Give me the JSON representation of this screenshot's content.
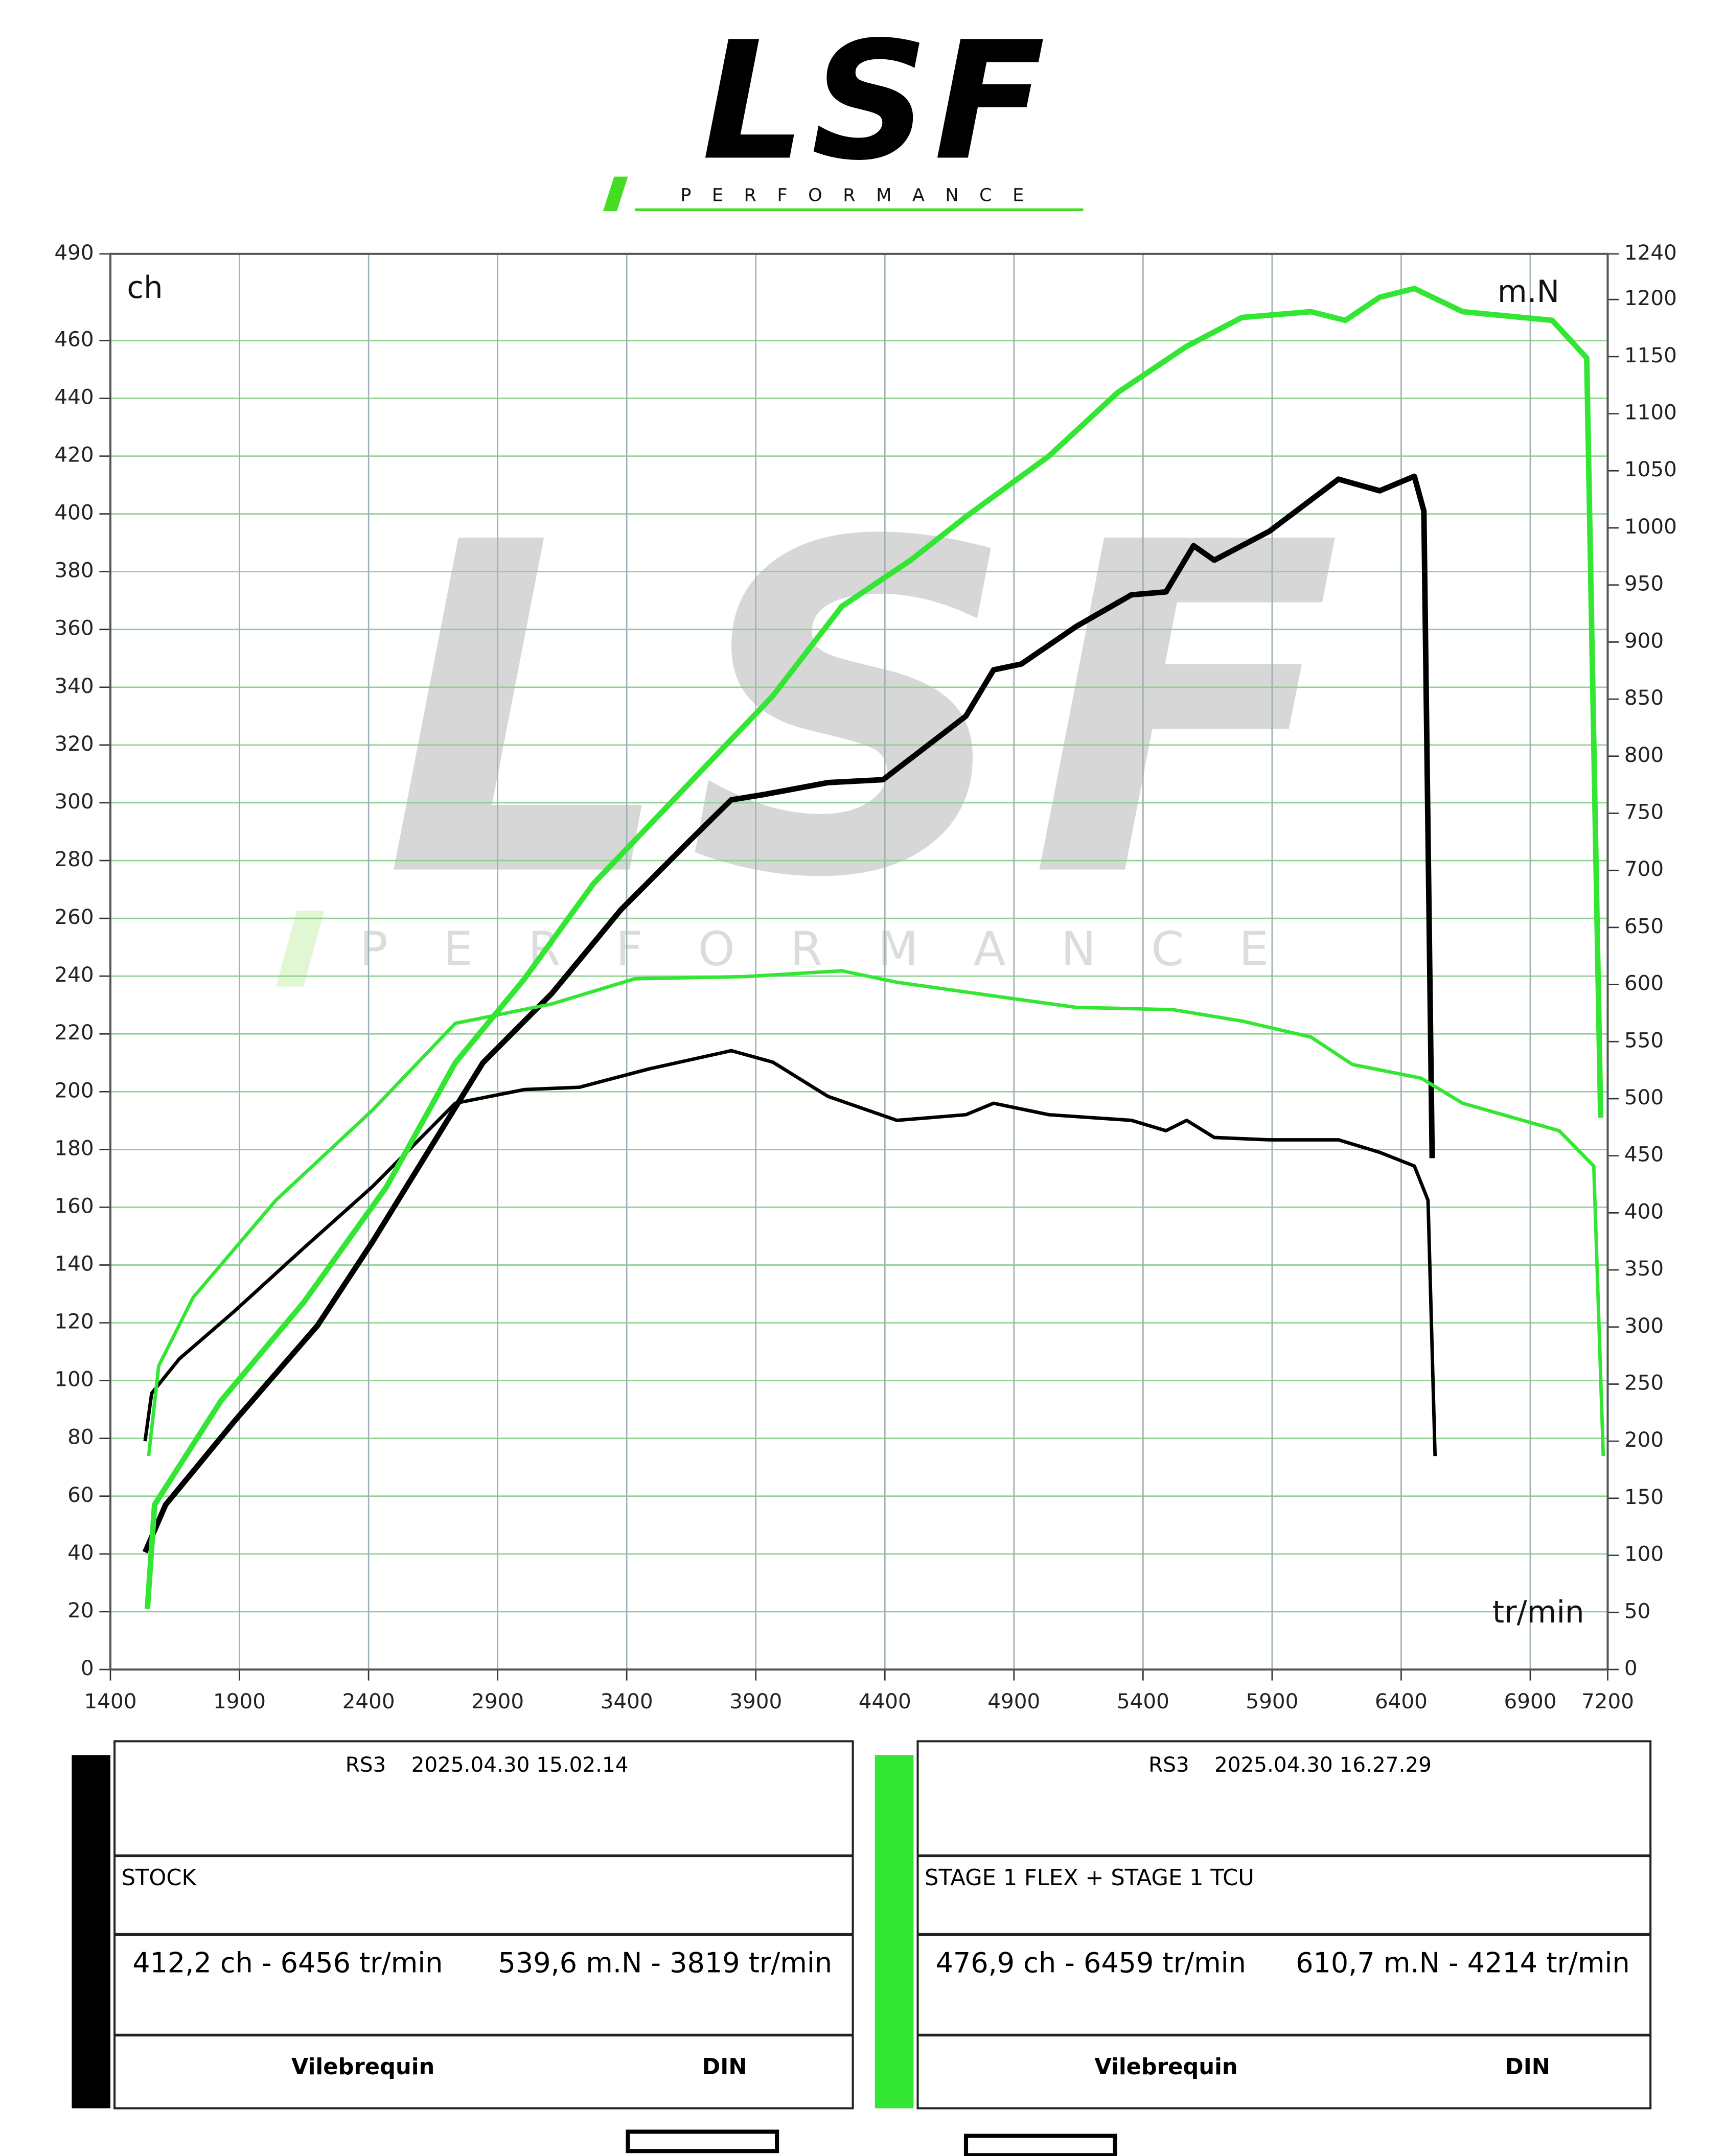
{
  "logo": {
    "brand": "LSF",
    "tagline": "PERFORMANCE"
  },
  "chart_data": {
    "type": "line",
    "y_label": "ch",
    "y2_label": "m.N",
    "x_label": "tr/min",
    "xlim": [
      1400,
      7200
    ],
    "xticks": [
      1400,
      1900,
      2400,
      2900,
      3400,
      3900,
      4400,
      4900,
      5400,
      5900,
      6400,
      6900,
      7200
    ],
    "ylim": [
      0,
      490
    ],
    "yticks": [
      0,
      20,
      40,
      60,
      80,
      100,
      120,
      140,
      160,
      180,
      200,
      220,
      240,
      260,
      280,
      300,
      320,
      340,
      360,
      380,
      400,
      420,
      440,
      460,
      490
    ],
    "y2lim": [
      0,
      1240
    ],
    "y2ticks": [
      0,
      50,
      100,
      150,
      200,
      250,
      300,
      350,
      400,
      450,
      500,
      550,
      600,
      650,
      700,
      750,
      800,
      850,
      900,
      950,
      1000,
      1050,
      1100,
      1150,
      1200,
      1240
    ],
    "grid": true,
    "series": [
      {
        "name": "STOCK",
        "color": "#000000",
        "x": [
          1534,
          1614,
          1881,
          2202,
          2415,
          2629,
          2843,
          3110,
          3378,
          3645,
          3805,
          3939,
          4179,
          4393,
          4714,
          4821,
          4928,
          5141,
          5355,
          5489,
          5596,
          5676,
          5890,
          6157,
          6317,
          6451,
          6488,
          6520
        ],
        "values": [
          40.6,
          57,
          86,
          119,
          148,
          179,
          210,
          234,
          263,
          287,
          301,
          303,
          307,
          308,
          330,
          346,
          348,
          361,
          372,
          373,
          389,
          384,
          394,
          412,
          408,
          413,
          401,
          177
        ]
      },
      {
        "color": "#000000",
        "axis": "y2",
        "x": [
          1534,
          1560,
          1667,
          1881,
          2148,
          2415,
          2736,
          3003,
          3217,
          3485,
          3805,
          3966,
          4179,
          4447,
          4714,
          4821,
          5035,
          5355,
          5489,
          5569,
          5676,
          5890,
          6157,
          6317,
          6451,
          6504,
          6531
        ],
        "values": [
          200,
          242,
          272,
          314,
          369,
          423,
          496,
          508,
          510,
          526,
          542,
          532,
          502,
          481,
          486,
          496,
          486,
          481,
          472,
          481,
          466,
          464,
          464,
          453,
          441,
          411,
          187
        ]
      },
      {
        "name": "STAGE 1 FLEX + STAGE 1 TCU",
        "color": "#33e633",
        "x": [
          1543,
          1571,
          1828,
          2148,
          2469,
          2736,
          3003,
          3271,
          3645,
          3966,
          4233,
          4500,
          4714,
          5035,
          5302,
          5569,
          5783,
          6050,
          6184,
          6317,
          6451,
          6638,
          6985,
          7119,
          7173
        ],
        "values": [
          21,
          57,
          93,
          127,
          167,
          210,
          239,
          272,
          307,
          337,
          368,
          384,
          399,
          420,
          442,
          458,
          468,
          470,
          467,
          475,
          478,
          470,
          467,
          454,
          191
        ]
      },
      {
        "color": "#33e633",
        "axis": "y2",
        "x": [
          1548,
          1587,
          1721,
          2041,
          2415,
          2736,
          3110,
          3431,
          3859,
          4233,
          4447,
          4821,
          5141,
          5516,
          5783,
          6050,
          6211,
          6477,
          6638,
          7012,
          7146,
          7183
        ],
        "values": [
          187,
          266,
          326,
          411,
          490,
          566,
          583,
          605,
          607,
          612,
          602,
          590,
          580,
          578,
          568,
          554,
          530,
          518,
          496,
          472,
          441,
          187
        ]
      }
    ]
  },
  "panels": [
    {
      "model": "RS3",
      "date": "2025.04.30 15.02.14",
      "power": "412,2 ch - 6456 tr/min",
      "torque": "539,6 m.N - 3819 tr/min",
      "crank": "Vilebrequin",
      "norm": "DIN"
    },
    {
      "model": "RS3",
      "date": "2025.04.30 16.27.29",
      "power": "476,9 ch - 6459 tr/min",
      "torque": "610,7 m.N - 4214 tr/min",
      "crank": "Vilebrequin",
      "norm": "DIN"
    }
  ]
}
